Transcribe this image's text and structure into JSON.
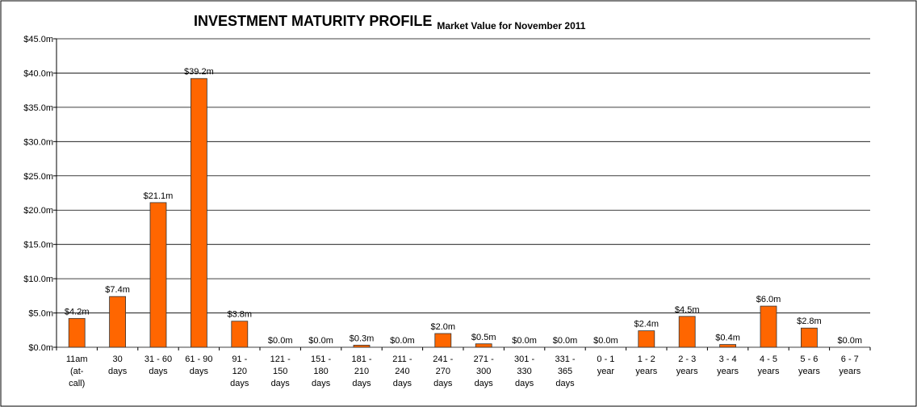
{
  "chart_data": {
    "type": "bar",
    "title": "INVESTMENT MATURITY PROFILE",
    "subtitle": "Market Value for November 2011",
    "categories": [
      "11am\n(at-\ncall)",
      "30\ndays",
      "31 - 60\ndays",
      "61 - 90\ndays",
      "91 -\n120\ndays",
      "121 -\n150\ndays",
      "151 -\n180\ndays",
      "181 -\n210\ndays",
      "211 -\n240\ndays",
      "241 -\n270\ndays",
      "271 -\n300\ndays",
      "301 -\n330\ndays",
      "331 -\n365\ndays",
      "0 - 1\nyear",
      "1 - 2\nyears",
      "2 - 3\nyears",
      "3 - 4\nyears",
      "4 - 5\nyears",
      "5 - 6\nyears",
      "6 - 7\nyears"
    ],
    "values": [
      4.2,
      7.4,
      21.1,
      39.2,
      3.8,
      0,
      0,
      0.3,
      0,
      2.0,
      0.5,
      0,
      0,
      0,
      2.4,
      4.5,
      0.4,
      6.0,
      2.8,
      0
    ],
    "value_labels": [
      "$4.2m",
      "$7.4m",
      "$21.1m",
      "$39.2m",
      "$3.8m",
      "$0.0m",
      "$0.0m",
      "$0.3m",
      "$0.0m",
      "$2.0m",
      "$0.5m",
      "$0.0m",
      "$0.0m",
      "$0.0m",
      "$2.4m",
      "$4.5m",
      "$0.4m",
      "$6.0m",
      "$2.8m",
      "$0.0m"
    ],
    "color": "#ff6600",
    "ylim": [
      0,
      45
    ],
    "yticks": [
      {
        "value": 0,
        "label": "$0.0m"
      },
      {
        "value": 5,
        "label": "$5.0m"
      },
      {
        "value": 10,
        "label": "$10.0m"
      },
      {
        "value": 15,
        "label": "$15.0m"
      },
      {
        "value": 20,
        "label": "$20.0m"
      },
      {
        "value": 25,
        "label": "$25.0m"
      },
      {
        "value": 30,
        "label": "$30.0m"
      },
      {
        "value": 35,
        "label": "$35.0m"
      },
      {
        "value": 40,
        "label": "$40.0m"
      },
      {
        "value": 45,
        "label": "$45.0m"
      }
    ],
    "grid": true
  }
}
